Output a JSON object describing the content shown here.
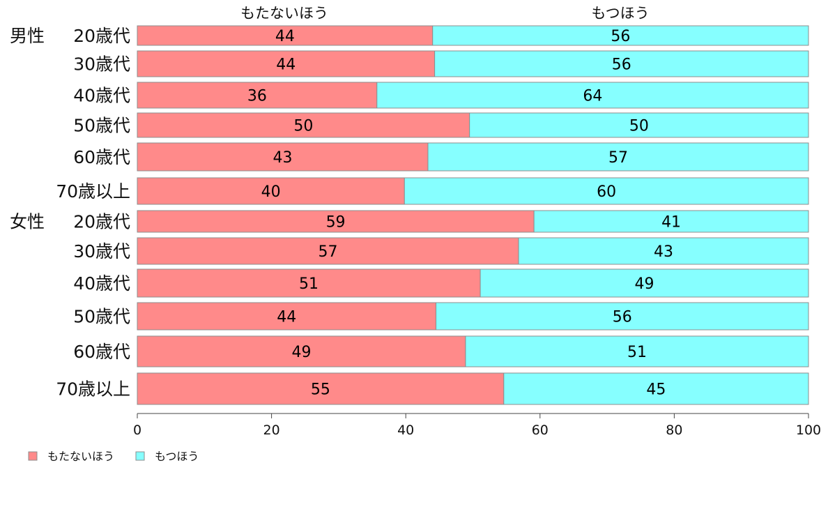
{
  "chart_data": {
    "type": "bar",
    "orientation": "horizontal",
    "stacked": true,
    "categories": [
      "20歳代",
      "30歳代",
      "40歳代",
      "50歳代",
      "60歳代",
      "70歳以上",
      "20歳代",
      "30歳代",
      "40歳代",
      "50歳代",
      "60歳代",
      "70歳以上"
    ],
    "groups": [
      {
        "label": "男性",
        "start_index": 0,
        "end_index": 5
      },
      {
        "label": "女性",
        "start_index": 6,
        "end_index": 11
      }
    ],
    "series": [
      {
        "name": "もたないほう",
        "color": "#ff8a8a",
        "values": [
          44,
          44.3,
          35.7,
          49.5,
          43.3,
          39.8,
          59.1,
          56.8,
          51.1,
          44.5,
          48.9,
          54.6
        ],
        "labels": [
          "44",
          "44",
          "36",
          "50",
          "43",
          "40",
          "59",
          "57",
          "51",
          "44",
          "49",
          "55"
        ]
      },
      {
        "name": "もつほう",
        "color": "#86ffff",
        "values": [
          56,
          55.7,
          64.3,
          50.5,
          56.7,
          60.2,
          40.9,
          43.2,
          48.9,
          55.5,
          51.1,
          45.4
        ],
        "labels": [
          "56",
          "56",
          "64",
          "50",
          "57",
          "60",
          "41",
          "43",
          "49",
          "56",
          "51",
          "45"
        ]
      }
    ],
    "column_headers": [
      "もたないほう",
      "もつほう"
    ],
    "xlim": [
      0,
      100
    ],
    "x_ticks": [
      0,
      20,
      40,
      60,
      80,
      100
    ],
    "title": "",
    "xlabel": "",
    "ylabel": "",
    "grid": false,
    "legend_position": "bottom-left"
  }
}
